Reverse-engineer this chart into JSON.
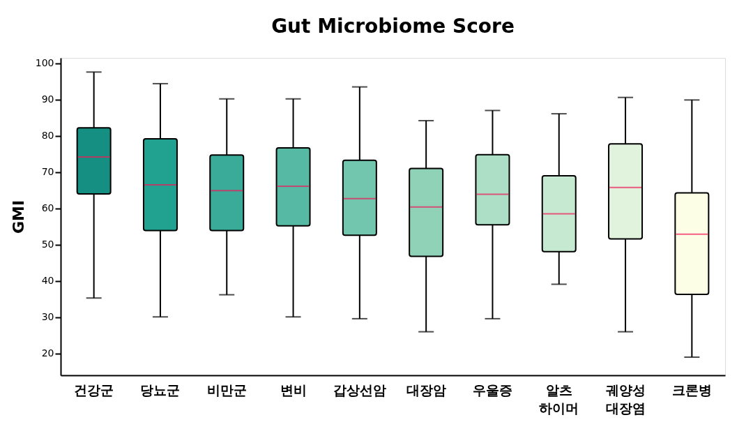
{
  "chart_data": {
    "type": "box",
    "title": "Gut Microbiome Score",
    "ylabel": "GMI",
    "categories": [
      "건강군",
      "당뇨군",
      "비만군",
      "변비",
      "갑상선암",
      "대장암",
      "우울증",
      "알츠\n하이머",
      "궤양성\n대장염",
      "크론병"
    ],
    "colors": [
      "#148f81",
      "#21a190",
      "#3aab98",
      "#55b9a4",
      "#72c6ad",
      "#8fd2b8",
      "#acdfc6",
      "#c6e9d1",
      "#e1f3dc",
      "#fdfee6"
    ],
    "boxes": [
      {
        "low": 35.3,
        "q1": 64.0,
        "median": 74.2,
        "q3": 82.2,
        "high": 97.6
      },
      {
        "low": 30.1,
        "q1": 53.9,
        "median": 66.5,
        "q3": 79.2,
        "high": 94.4
      },
      {
        "low": 36.2,
        "q1": 53.9,
        "median": 64.9,
        "q3": 74.7,
        "high": 90.2
      },
      {
        "low": 30.1,
        "q1": 55.2,
        "median": 66.1,
        "q3": 76.7,
        "high": 90.2
      },
      {
        "low": 29.6,
        "q1": 52.6,
        "median": 62.7,
        "q3": 73.3,
        "high": 93.5
      },
      {
        "low": 26.0,
        "q1": 46.8,
        "median": 60.4,
        "q3": 71.0,
        "high": 84.2
      },
      {
        "low": 29.6,
        "q1": 55.5,
        "median": 63.9,
        "q3": 74.8,
        "high": 87.0
      },
      {
        "low": 39.1,
        "q1": 48.1,
        "median": 58.5,
        "q3": 69.0,
        "high": 86.1
      },
      {
        "low": 26.0,
        "q1": 51.6,
        "median": 65.8,
        "q3": 77.8,
        "high": 90.6
      },
      {
        "low": 19.0,
        "q1": 36.3,
        "median": 52.9,
        "q3": 64.3,
        "high": 89.9
      }
    ],
    "ylim": [
      14,
      101.5
    ],
    "yticks": [
      20,
      30,
      40,
      50,
      60,
      70,
      80,
      90,
      100
    ],
    "grid": false
  }
}
